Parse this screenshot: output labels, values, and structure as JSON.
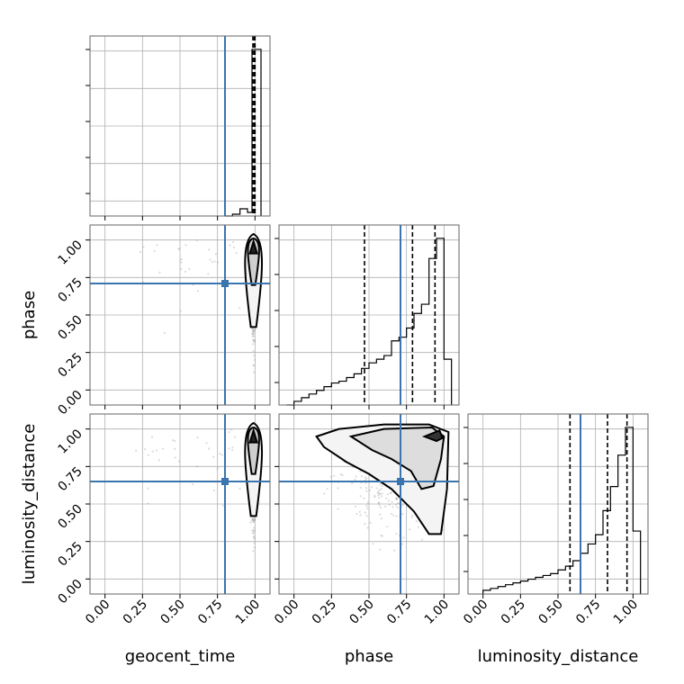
{
  "chart_data": {
    "type": "corner",
    "parameters": [
      "geocent_time",
      "phase",
      "luminosity_distance"
    ],
    "injection": {
      "geocent_time": 0.8,
      "phase": 0.71,
      "luminosity_distance": 0.65
    },
    "injection_color": "#3b75af",
    "tick_values": [
      0.0,
      0.25,
      0.5,
      0.75,
      1.0
    ],
    "tick_labels": [
      "0.00",
      "0.25",
      "0.50",
      "0.75",
      "1.00"
    ],
    "range": [
      -0.1,
      1.1
    ],
    "histograms": [
      {
        "parameter": "geocent_time",
        "bins": [
          0.8,
          0.85,
          0.9,
          0.95,
          0.98,
          1.0,
          1.04
        ],
        "counts": [
          0,
          0.01,
          0.04,
          0.02,
          0.93,
          0.93
        ],
        "quantiles": [
          0.986,
          0.995,
          1.0
        ]
      },
      {
        "parameter": "phase",
        "bins": [
          -0.05,
          0.0,
          0.05,
          0.1,
          0.15,
          0.2,
          0.25,
          0.3,
          0.35,
          0.4,
          0.45,
          0.5,
          0.55,
          0.6,
          0.65,
          0.7,
          0.75,
          0.8,
          0.85,
          0.9,
          0.95,
          1.0,
          1.05
        ],
        "counts": [
          0.0,
          0.02,
          0.04,
          0.06,
          0.08,
          0.1,
          0.12,
          0.13,
          0.15,
          0.17,
          0.2,
          0.23,
          0.25,
          0.27,
          0.35,
          0.37,
          0.42,
          0.5,
          0.55,
          0.8,
          0.91,
          0.25
        ],
        "quantiles": [
          0.47,
          0.79,
          0.94
        ]
      },
      {
        "parameter": "luminosity_distance",
        "bins": [
          0.0,
          0.05,
          0.1,
          0.15,
          0.2,
          0.25,
          0.3,
          0.35,
          0.4,
          0.45,
          0.5,
          0.55,
          0.6,
          0.65,
          0.7,
          0.75,
          0.8,
          0.85,
          0.9,
          0.95,
          1.0,
          1.05
        ],
        "counts": [
          0.02,
          0.03,
          0.04,
          0.05,
          0.06,
          0.07,
          0.08,
          0.09,
          0.1,
          0.11,
          0.13,
          0.15,
          0.18,
          0.22,
          0.27,
          0.32,
          0.45,
          0.58,
          0.75,
          0.9,
          0.34
        ],
        "quantiles": [
          0.58,
          0.83,
          0.96
        ]
      }
    ],
    "joint_panels": [
      {
        "x": "geocent_time",
        "y": "phase",
        "scatter_center": [
          0.99,
          0.75
        ],
        "scatter_spread": [
          0.01,
          0.25
        ]
      },
      {
        "x": "geocent_time",
        "y": "luminosity_distance",
        "scatter_center": [
          0.99,
          0.7
        ],
        "scatter_spread": [
          0.01,
          0.25
        ]
      },
      {
        "x": "phase",
        "y": "luminosity_distance",
        "scatter_center": [
          0.7,
          0.72
        ],
        "scatter_spread": [
          0.25,
          0.22
        ]
      }
    ],
    "grid": true
  }
}
